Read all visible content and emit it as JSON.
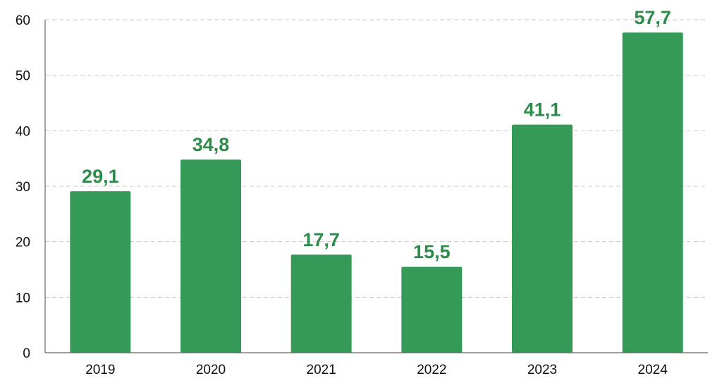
{
  "chart_data": {
    "type": "bar",
    "categories": [
      "2019",
      "2020",
      "2021",
      "2022",
      "2023",
      "2024"
    ],
    "values": [
      29.1,
      34.8,
      17.7,
      15.5,
      41.1,
      57.7
    ],
    "value_labels": [
      "29,1",
      "34,8",
      "17,7",
      "15,5",
      "41,1",
      "57,7"
    ],
    "title": "",
    "xlabel": "",
    "ylabel": "",
    "ylim": [
      0,
      60
    ],
    "yticks": [
      0,
      10,
      20,
      30,
      40,
      50,
      60
    ],
    "grid": true,
    "legend": "none",
    "bar_color": "#359a58",
    "label_color": "#2e8b4a"
  }
}
